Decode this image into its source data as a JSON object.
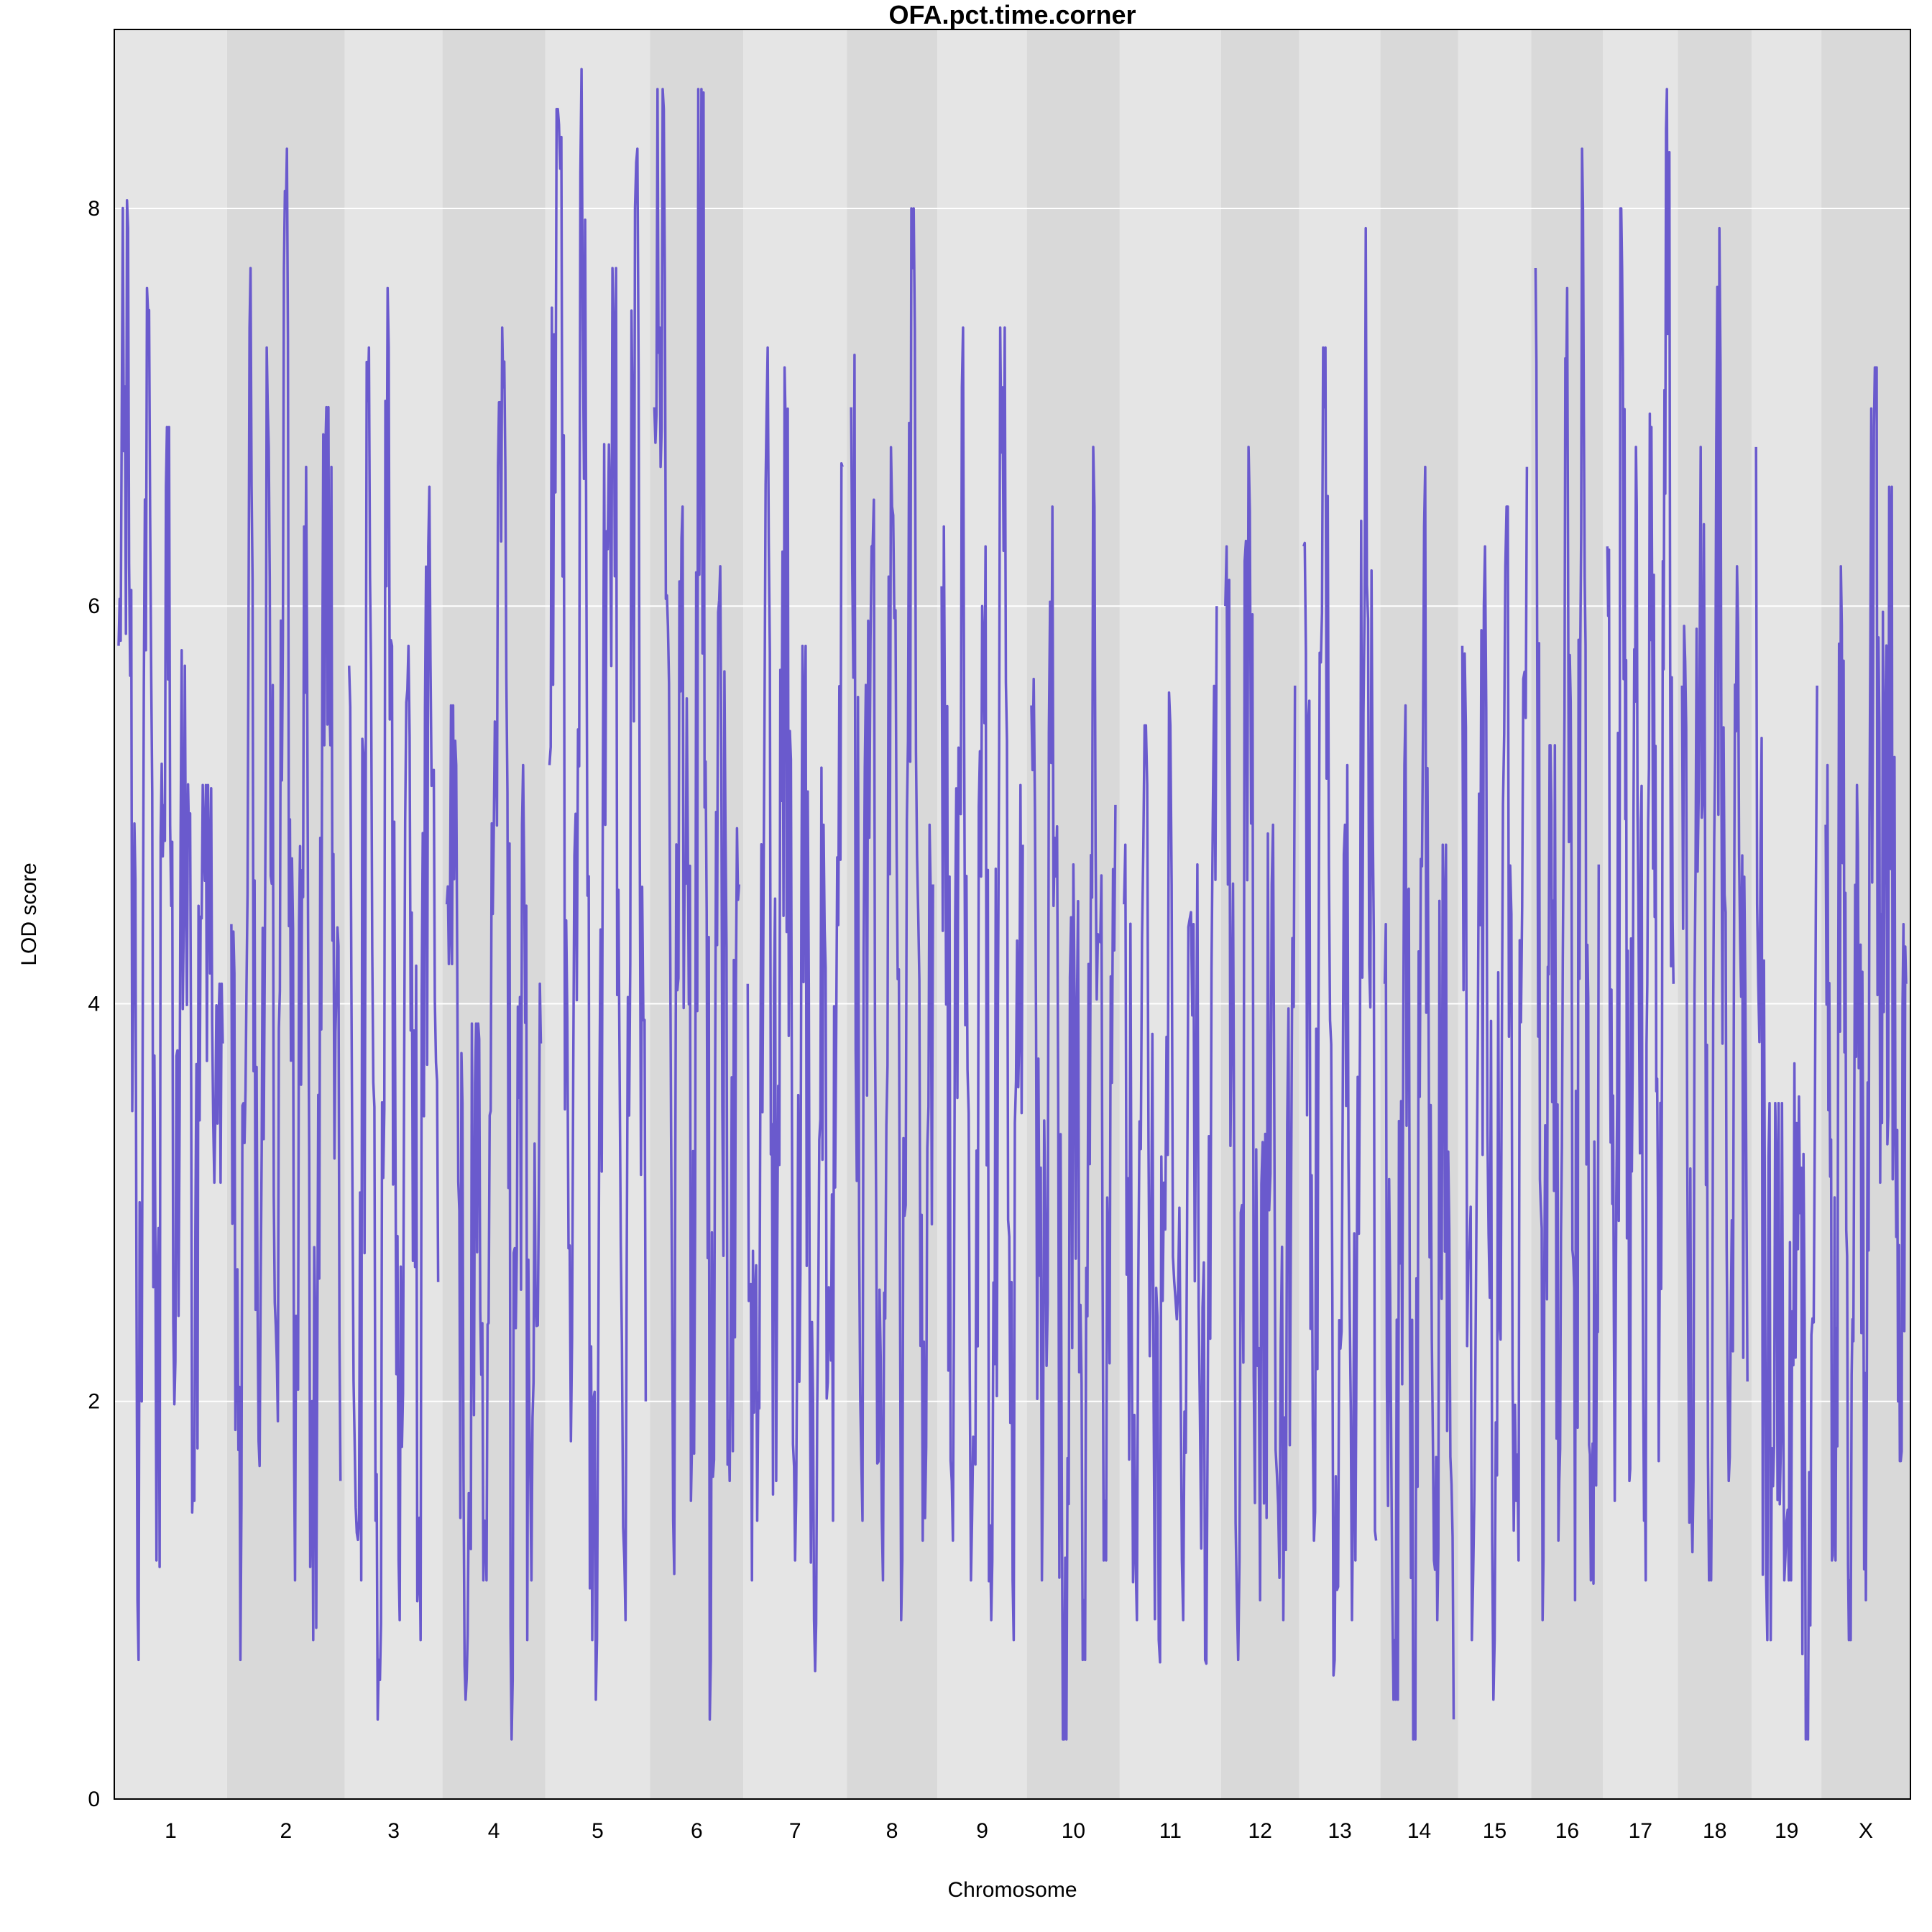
{
  "chart_data": {
    "type": "line",
    "title": "OFA.pct.time.corner",
    "xlabel": "Chromosome",
    "ylabel": "LOD score",
    "ylim": [
      0,
      8.9
    ],
    "yticks": [
      0,
      2,
      4,
      6,
      8
    ],
    "grid": "horizontal",
    "line_color": "#6A5ACD",
    "band_colors": [
      "#E5E5E5",
      "#D9D9D9"
    ],
    "chromosomes": [
      {
        "label": "1",
        "peaks": [
          5.8,
          7.9,
          1.0,
          7.6,
          1.2,
          6.6,
          2.2,
          5.7,
          1.5,
          4.8,
          3.4,
          3.8
        ]
      },
      {
        "label": "2",
        "peaks": [
          4.4,
          0.7,
          7.4,
          1.8,
          7.0,
          2.2,
          8.0,
          1.1,
          6.4,
          0.8,
          5.6,
          6.7,
          1.6
        ]
      },
      {
        "label": "3",
        "peaks": [
          5.7,
          1.4,
          7.3,
          0.7,
          7.3,
          1.2,
          5.8,
          1.1,
          6.3,
          2.6
        ]
      },
      {
        "label": "4",
        "peaks": [
          4.5,
          5.2,
          0.5,
          3.6,
          1.4,
          4.9,
          7.1,
          0.6,
          4.9,
          1.1,
          3.8
        ]
      },
      {
        "label": "5",
        "peaks": [
          5.2,
          8.2,
          1.8,
          8.7,
          0.8,
          5.2,
          7.4,
          1.2,
          8.0,
          2.0
        ]
      },
      {
        "label": "6",
        "peaks": [
          7.0,
          8.5,
          1.4,
          6.5,
          1.8,
          8.6,
          0.7,
          6.2,
          1.6,
          4.6
        ]
      },
      {
        "label": "7",
        "peaks": [
          4.1,
          1.4,
          7.0,
          1.6,
          6.9,
          1.2,
          5.5,
          0.9,
          4.9,
          1.4,
          6.7
        ]
      },
      {
        "label": "8",
        "peaks": [
          7.0,
          1.7,
          6.3,
          1.4,
          6.5,
          1.2,
          7.7,
          1.3,
          4.6
        ]
      },
      {
        "label": "9",
        "peaks": [
          6.1,
          1.6,
          7.1,
          1.4,
          6.0,
          1.2,
          7.1,
          1.1,
          4.8
        ]
      },
      {
        "label": "10",
        "peaks": [
          5.5,
          1.1,
          6.5,
          0.3,
          4.7,
          1.0,
          6.5,
          1.5,
          5.0
        ]
      },
      {
        "label": "11",
        "peaks": [
          4.5,
          1.2,
          5.1,
          0.8,
          5.4,
          1.2,
          4.4,
          0.7,
          6.0
        ]
      },
      {
        "label": "12",
        "peaks": [
          6.0,
          1.0,
          6.8,
          1.0,
          4.6,
          0.9,
          5.6
        ]
      },
      {
        "label": "13",
        "peaks": [
          6.3,
          1.3,
          7.0,
          0.7,
          4.9,
          1.2,
          7.9,
          1.3
        ]
      },
      {
        "label": "14",
        "peaks": [
          4.1,
          0.8,
          5.2,
          0.6,
          6.4,
          1.2,
          4.5,
          0.4
        ]
      },
      {
        "label": "15",
        "peaks": [
          5.8,
          1.1,
          6.0,
          0.8,
          6.2,
          1.5,
          6.7
        ]
      },
      {
        "label": "16",
        "peaks": [
          7.7,
          1.2,
          5.0,
          1.6,
          7.6,
          1.0,
          8.0,
          1.1,
          4.7
        ]
      },
      {
        "label": "17",
        "peaks": [
          6.3,
          1.5,
          7.7,
          1.6,
          6.5,
          1.4,
          6.9,
          1.7,
          8.4,
          4.1
        ]
      },
      {
        "label": "18",
        "peaks": [
          5.6,
          1.5,
          6.8,
          1.4,
          7.9,
          1.6,
          5.9,
          2.1
        ]
      },
      {
        "label": "19",
        "peaks": [
          6.8,
          1.1,
          3.2,
          1.4,
          3.4,
          0.4,
          5.6
        ]
      },
      {
        "label": "X",
        "peaks": [
          4.9,
          1.5,
          5.9,
          1.1,
          4.8,
          1.0,
          6.9,
          3.4,
          6.3,
          2.0,
          4.1
        ]
      }
    ]
  }
}
